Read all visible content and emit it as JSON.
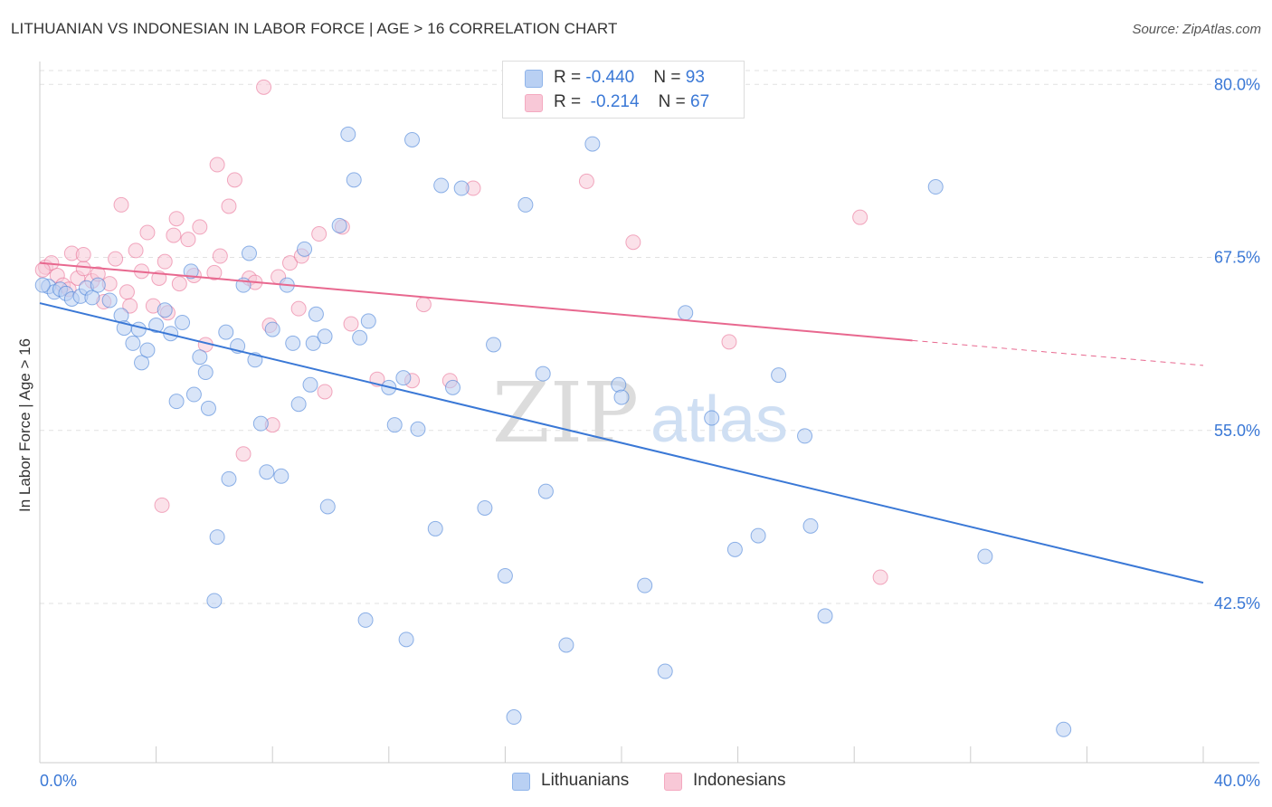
{
  "header": {
    "title": "LITHUANIAN VS INDONESIAN IN LABOR FORCE | AGE > 16 CORRELATION CHART",
    "source": "Source: ZipAtlas.com"
  },
  "watermark": {
    "zip": "ZIP",
    "atlas": "atlas"
  },
  "legend": {
    "rows": [
      {
        "r_label": "R = ",
        "r_value": "-0.440",
        "n_label": "N = ",
        "n_value": "93",
        "color": "#8fb4ea"
      },
      {
        "r_label": "R = ",
        "r_value": "-0.214",
        "n_label": "N = ",
        "n_value": "67",
        "color": "#f4a9c0"
      }
    ]
  },
  "bottom_legend": [
    {
      "label": "Lithuanians",
      "color": "#8fb4ea"
    },
    {
      "label": "Indonesians",
      "color": "#f4a9c0"
    }
  ],
  "chart_data": {
    "type": "scatter",
    "title": "LITHUANIAN VS INDONESIAN IN LABOR FORCE | AGE > 16 CORRELATION CHART",
    "ylabel": "In Labor Force | Age > 16",
    "xlim": [
      0,
      40
    ],
    "ylim": [
      31,
      81
    ],
    "x_tick_labels": [
      "0.0%",
      "40.0%"
    ],
    "y_ticks": [
      42.5,
      55.0,
      67.5,
      80.0
    ],
    "y_tick_labels": [
      "42.5%",
      "55.0%",
      "67.5%",
      "80.0%"
    ],
    "grid": "horizontal dashed",
    "colors": {
      "axis_labels": "#3a78d6",
      "grid": "#e2e2e2"
    },
    "series": [
      {
        "name": "Lithuanians",
        "color": "#3a78d6",
        "fill": "#b9d0f3",
        "trend": {
          "x": [
            0,
            40
          ],
          "y": [
            64.2,
            44.0
          ]
        },
        "points": [
          [
            0.3,
            65.4
          ],
          [
            0.5,
            65.0
          ],
          [
            0.7,
            65.2
          ],
          [
            0.9,
            64.9
          ],
          [
            1.1,
            64.5
          ],
          [
            1.4,
            64.7
          ],
          [
            1.6,
            65.3
          ],
          [
            1.8,
            64.6
          ],
          [
            2.0,
            65.5
          ],
          [
            2.4,
            64.4
          ],
          [
            2.8,
            63.3
          ],
          [
            2.9,
            62.4
          ],
          [
            3.2,
            61.3
          ],
          [
            3.4,
            62.3
          ],
          [
            3.5,
            59.9
          ],
          [
            3.7,
            60.8
          ],
          [
            4.0,
            62.6
          ],
          [
            4.3,
            63.7
          ],
          [
            4.5,
            62.0
          ],
          [
            4.7,
            57.1
          ],
          [
            4.9,
            62.8
          ],
          [
            5.2,
            66.5
          ],
          [
            5.3,
            57.6
          ],
          [
            5.5,
            60.3
          ],
          [
            5.7,
            59.2
          ],
          [
            5.8,
            56.6
          ],
          [
            6.1,
            47.3
          ],
          [
            6.0,
            42.7
          ],
          [
            6.4,
            62.1
          ],
          [
            6.5,
            51.5
          ],
          [
            6.8,
            61.1
          ],
          [
            7.0,
            65.5
          ],
          [
            7.2,
            67.8
          ],
          [
            7.4,
            60.1
          ],
          [
            7.6,
            55.5
          ],
          [
            7.8,
            52.0
          ],
          [
            8.0,
            62.3
          ],
          [
            8.3,
            51.7
          ],
          [
            8.5,
            65.5
          ],
          [
            8.7,
            61.3
          ],
          [
            8.9,
            56.9
          ],
          [
            9.1,
            68.1
          ],
          [
            9.3,
            58.3
          ],
          [
            9.4,
            61.3
          ],
          [
            9.5,
            63.4
          ],
          [
            9.8,
            61.8
          ],
          [
            9.9,
            49.5
          ],
          [
            10.3,
            69.8
          ],
          [
            10.6,
            76.4
          ],
          [
            10.8,
            73.1
          ],
          [
            11.0,
            61.7
          ],
          [
            11.3,
            62.9
          ],
          [
            11.2,
            41.3
          ],
          [
            12.0,
            58.1
          ],
          [
            12.2,
            55.4
          ],
          [
            12.5,
            58.8
          ],
          [
            12.6,
            39.9
          ],
          [
            12.8,
            76.0
          ],
          [
            13.0,
            55.1
          ],
          [
            13.6,
            47.9
          ],
          [
            13.8,
            72.7
          ],
          [
            14.2,
            58.1
          ],
          [
            14.5,
            72.5
          ],
          [
            15.3,
            49.4
          ],
          [
            15.6,
            61.2
          ],
          [
            16.0,
            44.5
          ],
          [
            16.3,
            34.3
          ],
          [
            16.7,
            71.3
          ],
          [
            17.3,
            59.1
          ],
          [
            17.4,
            50.6
          ],
          [
            18.1,
            39.5
          ],
          [
            19.0,
            75.7
          ],
          [
            19.9,
            58.3
          ],
          [
            20.0,
            57.4
          ],
          [
            20.8,
            43.8
          ],
          [
            21.5,
            37.6
          ],
          [
            22.2,
            63.5
          ],
          [
            23.1,
            55.9
          ],
          [
            23.9,
            46.4
          ],
          [
            24.7,
            47.4
          ],
          [
            25.4,
            59.0
          ],
          [
            26.3,
            54.6
          ],
          [
            26.5,
            48.1
          ],
          [
            27.0,
            41.6
          ],
          [
            30.8,
            72.6
          ],
          [
            32.5,
            45.9
          ],
          [
            35.2,
            33.4
          ],
          [
            0.1,
            65.5
          ]
        ]
      },
      {
        "name": "Indonesians",
        "color": "#e8688f",
        "fill": "#f8c8d7",
        "trend": {
          "x": [
            0,
            30
          ],
          "y": [
            67.1,
            61.5
          ]
        },
        "trend_dashed": {
          "x": [
            30,
            40
          ],
          "y": [
            61.5,
            59.7
          ]
        },
        "points": [
          [
            0.2,
            66.8
          ],
          [
            0.4,
            67.1
          ],
          [
            0.6,
            66.2
          ],
          [
            0.8,
            65.5
          ],
          [
            1.0,
            65.2
          ],
          [
            1.1,
            67.8
          ],
          [
            1.3,
            66.0
          ],
          [
            1.5,
            66.7
          ],
          [
            1.5,
            67.7
          ],
          [
            1.8,
            65.8
          ],
          [
            2.0,
            66.3
          ],
          [
            2.2,
            64.3
          ],
          [
            2.4,
            65.6
          ],
          [
            2.6,
            67.4
          ],
          [
            2.8,
            71.3
          ],
          [
            3.0,
            65.0
          ],
          [
            3.1,
            64.0
          ],
          [
            3.3,
            68.0
          ],
          [
            3.5,
            66.5
          ],
          [
            3.7,
            69.3
          ],
          [
            3.9,
            64.0
          ],
          [
            4.1,
            66.0
          ],
          [
            4.3,
            67.2
          ],
          [
            4.4,
            63.5
          ],
          [
            4.6,
            69.1
          ],
          [
            4.7,
            70.3
          ],
          [
            4.8,
            65.6
          ],
          [
            5.1,
            68.8
          ],
          [
            5.3,
            66.2
          ],
          [
            5.5,
            69.7
          ],
          [
            5.7,
            61.2
          ],
          [
            6.0,
            66.4
          ],
          [
            6.1,
            74.2
          ],
          [
            6.2,
            67.6
          ],
          [
            6.5,
            71.2
          ],
          [
            6.7,
            73.1
          ],
          [
            7.0,
            53.3
          ],
          [
            7.2,
            66.0
          ],
          [
            7.4,
            65.7
          ],
          [
            7.9,
            62.6
          ],
          [
            8.0,
            55.4
          ],
          [
            8.2,
            66.1
          ],
          [
            8.6,
            67.1
          ],
          [
            8.9,
            63.8
          ],
          [
            9.0,
            67.6
          ],
          [
            9.8,
            57.8
          ],
          [
            9.6,
            69.2
          ],
          [
            10.4,
            69.7
          ],
          [
            10.7,
            62.7
          ],
          [
            11.6,
            58.7
          ],
          [
            12.8,
            58.6
          ],
          [
            13.2,
            64.1
          ],
          [
            14.1,
            58.6
          ],
          [
            14.9,
            72.5
          ],
          [
            18.8,
            73.0
          ],
          [
            20.4,
            68.6
          ],
          [
            23.7,
            61.4
          ],
          [
            28.2,
            70.4
          ],
          [
            28.9,
            44.4
          ],
          [
            4.2,
            49.6
          ],
          [
            7.7,
            79.8
          ],
          [
            0.1,
            66.6
          ]
        ]
      }
    ]
  }
}
